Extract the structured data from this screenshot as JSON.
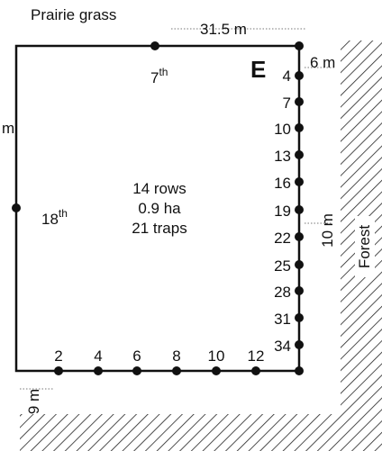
{
  "labels": {
    "top_left": "Prairie grass",
    "top_dim": "31.5 m",
    "left_dim": "m",
    "right_dim_top": "6 m",
    "right_dim_mid": "10 m",
    "bottom_dim": "9 m",
    "forest": "Forest",
    "corner": "E"
  },
  "center": {
    "rows": "14 rows",
    "area": "0.9 ha",
    "traps": "21 traps"
  },
  "row_7": {
    "base": "7",
    "sup": "th"
  },
  "row_18": {
    "base": "18",
    "sup": "th"
  },
  "right_rows": [
    "4",
    "7",
    "10",
    "13",
    "16",
    "19",
    "22",
    "25",
    "28",
    "31",
    "34"
  ],
  "bottom_rows": [
    "2",
    "4",
    "6",
    "8",
    "10",
    "12"
  ]
}
